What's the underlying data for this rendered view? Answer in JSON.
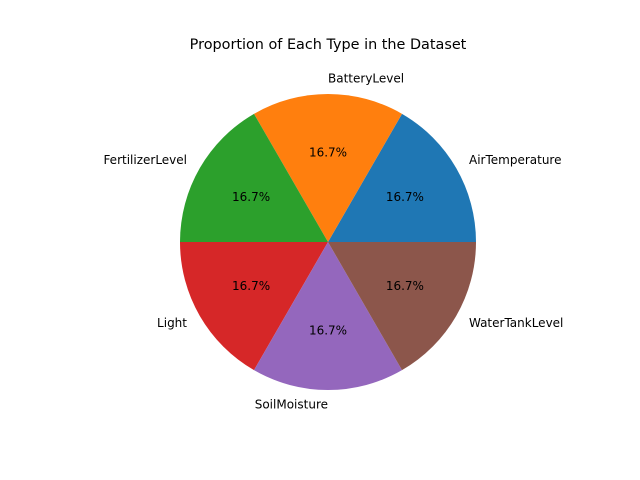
{
  "chart_data": {
    "type": "pie",
    "title": "Proportion of Each Type in the Dataset",
    "categories": [
      "AirTemperature",
      "BatteryLevel",
      "FertilizerLevel",
      "Light",
      "SoilMoisture",
      "WaterTankLevel"
    ],
    "values": [
      16.7,
      16.7,
      16.7,
      16.7,
      16.7,
      16.7
    ],
    "percent_labels": [
      "16.7%",
      "16.7%",
      "16.7%",
      "16.7%",
      "16.7%",
      "16.7%"
    ],
    "colors": [
      "#1f77b4",
      "#ff7f0e",
      "#2ca02c",
      "#d62728",
      "#9467bd",
      "#8c564b"
    ],
    "start_angle_deg": 0,
    "direction": "counterclockwise",
    "legend": "none"
  }
}
